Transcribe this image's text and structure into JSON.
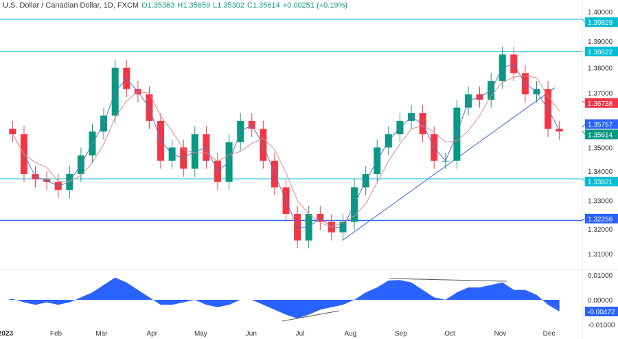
{
  "header": {
    "symbol": "U.S. Dollar / Canadian Dollar, 1D, FXCM",
    "open": "O1.35363",
    "high": "H1.35659",
    "low": "L1.35302",
    "close": "C1.35614",
    "change": "+0.00251 (+0.19%)"
  },
  "chart_data": {
    "type": "candlestick",
    "colors": {
      "up": "#089981",
      "down": "#f23645",
      "ma_fast": "#5b6fc7",
      "ma_slow": "#e08a8a",
      "oscillator": "#2962ff",
      "level": "#26a69a",
      "trendline": "#5b7bd5"
    },
    "ylim": [
      1.305,
      1.4
    ],
    "y_ticks": [
      "1.40000",
      "1.39000",
      "1.38000",
      "1.37000",
      "1.35000",
      "1.34000",
      "1.33000",
      "1.32000",
      "1.31000"
    ],
    "x_ticks": [
      "2023",
      "Feb",
      "Mar",
      "Apr",
      "May",
      "Jun",
      "Jul",
      "Aug",
      "Sep",
      "Oct",
      "Nov",
      "Dec"
    ],
    "weeks": [
      "2023-01-02",
      "2023-01-09",
      "2023-01-16",
      "2023-01-23",
      "2023-01-30",
      "2023-02-06",
      "2023-02-13",
      "2023-02-20",
      "2023-02-27",
      "2023-03-06",
      "2023-03-13",
      "2023-03-20",
      "2023-03-27",
      "2023-04-03",
      "2023-04-10",
      "2023-04-17",
      "2023-04-24",
      "2023-05-01",
      "2023-05-08",
      "2023-05-15",
      "2023-05-22",
      "2023-05-29",
      "2023-06-05",
      "2023-06-12",
      "2023-06-19",
      "2023-06-26",
      "2023-07-03",
      "2023-07-10",
      "2023-07-17",
      "2023-07-24",
      "2023-07-31",
      "2023-08-07",
      "2023-08-14",
      "2023-08-21",
      "2023-08-28",
      "2023-09-04",
      "2023-09-11",
      "2023-09-18",
      "2023-09-25",
      "2023-10-02",
      "2023-10-09",
      "2023-10-16",
      "2023-10-23",
      "2023-10-30",
      "2023-11-06",
      "2023-11-13",
      "2023-11-20",
      "2023-11-27",
      "2023-12-04"
    ],
    "close": [
      1.355,
      1.34,
      1.338,
      1.337,
      1.334,
      1.34,
      1.347,
      1.356,
      1.362,
      1.38,
      1.372,
      1.37,
      1.36,
      1.345,
      1.35,
      1.342,
      1.355,
      1.345,
      1.337,
      1.352,
      1.36,
      1.357,
      1.345,
      1.335,
      1.325,
      1.315,
      1.325,
      1.322,
      1.318,
      1.322,
      1.335,
      1.34,
      1.35,
      1.355,
      1.36,
      1.363,
      1.355,
      1.345,
      1.345,
      1.365,
      1.37,
      1.368,
      1.375,
      1.385,
      1.378,
      1.37,
      1.372,
      1.357,
      1.356
    ],
    "oscillator": [
      0.0004,
      -0.001,
      -0.002,
      -0.001,
      -0.002,
      -0.001,
      0.001,
      0.003,
      0.006,
      0.009,
      0.007,
      0.004,
      0.001,
      -0.002,
      -0.002,
      -0.001,
      0.0,
      -0.002,
      -0.003,
      -0.002,
      0.0,
      0.0,
      -0.002,
      -0.004,
      -0.006,
      -0.0075,
      -0.006,
      -0.004,
      -0.003,
      -0.002,
      0.0,
      0.003,
      0.005,
      0.0078,
      0.008,
      0.007,
      0.004,
      0.001,
      0.0,
      0.003,
      0.005,
      0.005,
      0.006,
      0.007,
      0.004,
      0.004,
      0.002,
      -0.002,
      -0.0047
    ],
    "osc_ticks": [
      "0.01000",
      "0.00000",
      "-0.01000"
    ],
    "levels": [
      {
        "value": 1.39829,
        "label": "1.39829",
        "color": "#00bcd4"
      },
      {
        "value": 1.38622,
        "label": "1.38622",
        "color": "#00bcd4"
      },
      {
        "value": 1.33821,
        "label": "1.33821",
        "color": "#00bcd4"
      },
      {
        "value": 1.32256,
        "label": "1.32256",
        "color": "#2962ff"
      }
    ],
    "markers": [
      {
        "label": "1.36738",
        "color": "#f23645",
        "value": 1.36738
      },
      {
        "label": "1.35757",
        "color": "#2962ff",
        "value": 1.35757
      },
      {
        "label": "1.35614",
        "color": "#089981",
        "value": 1.35614
      }
    ],
    "osc_marker": {
      "label": "-0.00472",
      "value": -0.00472,
      "color": "#2962ff"
    }
  }
}
